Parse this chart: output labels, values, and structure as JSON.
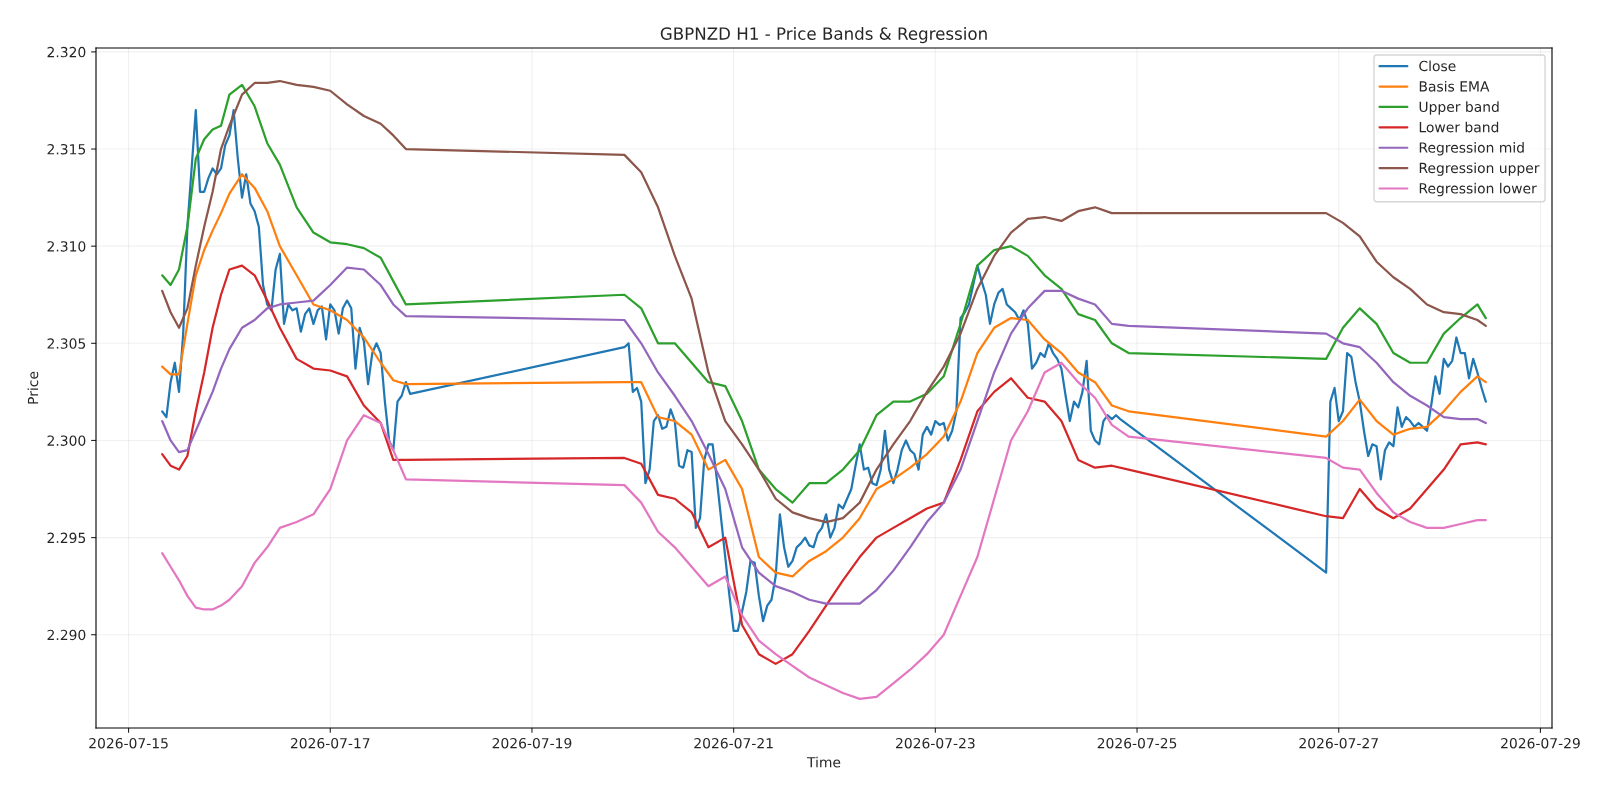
{
  "chart_data": {
    "type": "line",
    "title": "GBPNZD H1 - Price Bands & Regression",
    "xlabel": "Time",
    "ylabel": "Price",
    "x": [
      "2026-07-15T08:00",
      "2026-07-15T10:00",
      "2026-07-15T12:00",
      "2026-07-15T14:00",
      "2026-07-15T16:00",
      "2026-07-15T18:00",
      "2026-07-15T20:00",
      "2026-07-15T22:00",
      "2026-07-16T00:00",
      "2026-07-16T03:00",
      "2026-07-16T06:00",
      "2026-07-16T09:00",
      "2026-07-16T12:00",
      "2026-07-16T16:00",
      "2026-07-16T20:00",
      "2026-07-17T00:00",
      "2026-07-17T04:00",
      "2026-07-17T08:00",
      "2026-07-17T12:00",
      "2026-07-17T15:00",
      "2026-07-17T18:00",
      "2026-07-19T22:00",
      "2026-07-20T02:00",
      "2026-07-20T06:00",
      "2026-07-20T10:00",
      "2026-07-20T14:00",
      "2026-07-20T18:00",
      "2026-07-20T22:00",
      "2026-07-21T02:00",
      "2026-07-21T06:00",
      "2026-07-21T10:00",
      "2026-07-21T14:00",
      "2026-07-21T18:00",
      "2026-07-21T22:00",
      "2026-07-22T02:00",
      "2026-07-22T06:00",
      "2026-07-22T10:00",
      "2026-07-22T14:00",
      "2026-07-22T18:00",
      "2026-07-22T22:00",
      "2026-07-23T02:00",
      "2026-07-23T06:00",
      "2026-07-23T10:00",
      "2026-07-23T14:00",
      "2026-07-23T18:00",
      "2026-07-23T22:00",
      "2026-07-24T02:00",
      "2026-07-24T06:00",
      "2026-07-24T10:00",
      "2026-07-24T14:00",
      "2026-07-24T18:00",
      "2026-07-24T22:00",
      "2026-07-26T21:00",
      "2026-07-27T01:00",
      "2026-07-27T05:00",
      "2026-07-27T09:00",
      "2026-07-27T13:00",
      "2026-07-27T17:00",
      "2026-07-27T21:00",
      "2026-07-28T01:00",
      "2026-07-28T05:00",
      "2026-07-28T09:00",
      "2026-07-28T11:00"
    ],
    "series": [
      {
        "name": "Close",
        "color": "#1f77b4",
        "x": [
          "2026-07-15T08:00",
          "2026-07-15T09:00",
          "2026-07-15T10:00",
          "2026-07-15T11:00",
          "2026-07-15T12:00",
          "2026-07-15T13:00",
          "2026-07-15T14:00",
          "2026-07-15T15:00",
          "2026-07-15T16:00",
          "2026-07-15T17:00",
          "2026-07-15T18:00",
          "2026-07-15T19:00",
          "2026-07-15T20:00",
          "2026-07-15T21:00",
          "2026-07-15T22:00",
          "2026-07-15T23:00",
          "2026-07-16T00:00",
          "2026-07-16T01:00",
          "2026-07-16T02:00",
          "2026-07-16T03:00",
          "2026-07-16T04:00",
          "2026-07-16T05:00",
          "2026-07-16T06:00",
          "2026-07-16T07:00",
          "2026-07-16T08:00",
          "2026-07-16T09:00",
          "2026-07-16T10:00",
          "2026-07-16T11:00",
          "2026-07-16T12:00",
          "2026-07-16T13:00",
          "2026-07-16T14:00",
          "2026-07-16T15:00",
          "2026-07-16T16:00",
          "2026-07-16T17:00",
          "2026-07-16T18:00",
          "2026-07-16T19:00",
          "2026-07-16T20:00",
          "2026-07-16T21:00",
          "2026-07-16T22:00",
          "2026-07-16T23:00",
          "2026-07-17T00:00",
          "2026-07-17T01:00",
          "2026-07-17T02:00",
          "2026-07-17T03:00",
          "2026-07-17T04:00",
          "2026-07-17T05:00",
          "2026-07-17T06:00",
          "2026-07-17T07:00",
          "2026-07-17T08:00",
          "2026-07-17T09:00",
          "2026-07-17T10:00",
          "2026-07-17T11:00",
          "2026-07-17T12:00",
          "2026-07-17T13:00",
          "2026-07-17T14:00",
          "2026-07-17T15:00",
          "2026-07-17T16:00",
          "2026-07-17T17:00",
          "2026-07-17T18:00",
          "2026-07-17T19:00",
          "2026-07-19T22:00",
          "2026-07-19T23:00",
          "2026-07-20T00:00",
          "2026-07-20T01:00",
          "2026-07-20T02:00",
          "2026-07-20T03:00",
          "2026-07-20T04:00",
          "2026-07-20T05:00",
          "2026-07-20T06:00",
          "2026-07-20T07:00",
          "2026-07-20T08:00",
          "2026-07-20T09:00",
          "2026-07-20T10:00",
          "2026-07-20T11:00",
          "2026-07-20T12:00",
          "2026-07-20T13:00",
          "2026-07-20T14:00",
          "2026-07-20T15:00",
          "2026-07-20T16:00",
          "2026-07-20T17:00",
          "2026-07-20T18:00",
          "2026-07-20T19:00",
          "2026-07-20T20:00",
          "2026-07-20T21:00",
          "2026-07-20T22:00",
          "2026-07-20T23:00",
          "2026-07-21T00:00",
          "2026-07-21T01:00",
          "2026-07-21T02:00",
          "2026-07-21T03:00",
          "2026-07-21T04:00",
          "2026-07-21T05:00",
          "2026-07-21T06:00",
          "2026-07-21T07:00",
          "2026-07-21T08:00",
          "2026-07-21T09:00",
          "2026-07-21T10:00",
          "2026-07-21T11:00",
          "2026-07-21T12:00",
          "2026-07-21T13:00",
          "2026-07-21T14:00",
          "2026-07-21T15:00",
          "2026-07-21T16:00",
          "2026-07-21T17:00",
          "2026-07-21T18:00",
          "2026-07-21T19:00",
          "2026-07-21T20:00",
          "2026-07-21T21:00",
          "2026-07-21T22:00",
          "2026-07-21T23:00",
          "2026-07-22T00:00",
          "2026-07-22T01:00",
          "2026-07-22T02:00",
          "2026-07-22T03:00",
          "2026-07-22T04:00",
          "2026-07-22T05:00",
          "2026-07-22T06:00",
          "2026-07-22T07:00",
          "2026-07-22T08:00",
          "2026-07-22T09:00",
          "2026-07-22T10:00",
          "2026-07-22T11:00",
          "2026-07-22T12:00",
          "2026-07-22T13:00",
          "2026-07-22T14:00",
          "2026-07-22T15:00",
          "2026-07-22T16:00",
          "2026-07-22T17:00",
          "2026-07-22T18:00",
          "2026-07-22T19:00",
          "2026-07-22T20:00",
          "2026-07-22T21:00",
          "2026-07-22T22:00",
          "2026-07-22T23:00",
          "2026-07-23T00:00",
          "2026-07-23T01:00",
          "2026-07-23T02:00",
          "2026-07-23T03:00",
          "2026-07-23T04:00",
          "2026-07-23T05:00",
          "2026-07-23T06:00",
          "2026-07-23T07:00",
          "2026-07-23T08:00",
          "2026-07-23T09:00",
          "2026-07-23T10:00",
          "2026-07-23T11:00",
          "2026-07-23T12:00",
          "2026-07-23T13:00",
          "2026-07-23T14:00",
          "2026-07-23T15:00",
          "2026-07-23T16:00",
          "2026-07-23T17:00",
          "2026-07-23T18:00",
          "2026-07-23T19:00",
          "2026-07-23T20:00",
          "2026-07-23T21:00",
          "2026-07-23T22:00",
          "2026-07-23T23:00",
          "2026-07-24T00:00",
          "2026-07-24T01:00",
          "2026-07-24T02:00",
          "2026-07-24T03:00",
          "2026-07-24T04:00",
          "2026-07-24T05:00",
          "2026-07-24T06:00",
          "2026-07-24T07:00",
          "2026-07-24T08:00",
          "2026-07-24T09:00",
          "2026-07-24T10:00",
          "2026-07-24T11:00",
          "2026-07-24T12:00",
          "2026-07-24T13:00",
          "2026-07-24T14:00",
          "2026-07-24T15:00",
          "2026-07-24T16:00",
          "2026-07-24T17:00",
          "2026-07-24T18:00",
          "2026-07-24T19:00",
          "2026-07-24T20:00",
          "2026-07-26T21:00",
          "2026-07-26T22:00",
          "2026-07-26T23:00",
          "2026-07-27T00:00",
          "2026-07-27T01:00",
          "2026-07-27T02:00",
          "2026-07-27T03:00",
          "2026-07-27T04:00",
          "2026-07-27T05:00",
          "2026-07-27T06:00",
          "2026-07-27T07:00",
          "2026-07-27T08:00",
          "2026-07-27T09:00",
          "2026-07-27T10:00",
          "2026-07-27T11:00",
          "2026-07-27T12:00",
          "2026-07-27T13:00",
          "2026-07-27T14:00",
          "2026-07-27T15:00",
          "2026-07-27T16:00",
          "2026-07-27T17:00",
          "2026-07-27T18:00",
          "2026-07-27T19:00",
          "2026-07-27T20:00",
          "2026-07-27T21:00",
          "2026-07-27T22:00",
          "2026-07-27T23:00",
          "2026-07-28T00:00",
          "2026-07-28T01:00",
          "2026-07-28T02:00",
          "2026-07-28T03:00",
          "2026-07-28T04:00",
          "2026-07-28T05:00",
          "2026-07-28T06:00",
          "2026-07-28T07:00",
          "2026-07-28T08:00",
          "2026-07-28T09:00",
          "2026-07-28T10:00",
          "2026-07-28T11:00"
        ],
        "values": [
          2.3015,
          2.3012,
          2.303,
          2.304,
          2.3025,
          2.3055,
          2.311,
          2.314,
          2.317,
          2.3128,
          2.3128,
          2.3135,
          2.314,
          2.3137,
          2.314,
          2.3152,
          2.3157,
          2.317,
          2.3145,
          2.3125,
          2.3137,
          2.3122,
          2.3118,
          2.311,
          2.308,
          2.307,
          2.3067,
          2.3088,
          2.3096,
          2.306,
          2.307,
          2.3067,
          2.3068,
          2.3056,
          2.3065,
          2.3068,
          2.306,
          2.3067,
          2.3069,
          2.3052,
          2.307,
          2.3067,
          2.3055,
          2.3068,
          2.3072,
          2.3068,
          2.3037,
          2.3058,
          2.3051,
          2.3029,
          2.3045,
          2.305,
          2.3045,
          2.302,
          2.3,
          2.2995,
          2.302,
          2.3023,
          2.303,
          2.3024,
          2.3048,
          2.305,
          2.3025,
          2.3027,
          2.302,
          2.2978,
          2.2985,
          2.301,
          2.3013,
          2.3006,
          2.3007,
          2.3016,
          2.301,
          2.2987,
          2.2986,
          2.2995,
          2.2994,
          2.2955,
          2.296,
          2.299,
          2.2998,
          2.2998,
          2.298,
          2.296,
          2.294,
          2.292,
          2.2902,
          2.2902,
          2.2912,
          2.2922,
          2.2938,
          2.2937,
          2.292,
          2.2907,
          2.2915,
          2.2918,
          2.293,
          2.2962,
          2.2945,
          2.2935,
          2.2938,
          2.2945,
          2.2947,
          2.295,
          2.2946,
          2.2945,
          2.2952,
          2.2955,
          2.2962,
          2.295,
          2.2955,
          2.2967,
          2.2965,
          2.297,
          2.2975,
          2.2987,
          2.2998,
          2.2985,
          2.2986,
          2.2978,
          2.2977,
          2.2985,
          2.3005,
          2.2985,
          2.2978,
          2.2985,
          2.2995,
          2.3,
          2.2995,
          2.2993,
          2.2985,
          2.3003,
          2.3007,
          2.3003,
          2.301,
          2.3008,
          2.3009,
          2.3,
          2.3005,
          2.3015,
          2.3063,
          2.3066,
          2.307,
          2.308,
          2.309,
          2.3082,
          2.3075,
          2.306,
          2.307,
          2.3076,
          2.3078,
          2.307,
          2.3068,
          2.3066,
          2.3062,
          2.3067,
          2.306,
          2.3037,
          2.304,
          2.3045,
          2.3043,
          2.305,
          2.3045,
          2.3042,
          2.3037,
          2.3023,
          2.301,
          2.302,
          2.3017,
          2.3025,
          2.3041,
          2.3005,
          2.3,
          2.2998,
          2.301,
          2.3013,
          2.3011,
          2.3013,
          2.3011,
          2.2932,
          2.302,
          2.3027,
          2.301,
          2.3015,
          2.3045,
          2.3043,
          2.303,
          2.302,
          2.3005,
          2.2992,
          2.2998,
          2.2997,
          2.298,
          2.2995,
          2.2999,
          2.2997,
          2.3017,
          2.3007,
          2.3012,
          2.301,
          2.3007,
          2.3009,
          2.3007,
          2.3005,
          2.3018,
          2.3033,
          2.3024,
          2.3042,
          2.3038,
          2.3041,
          2.3053,
          2.3045,
          2.3045,
          2.3032,
          2.3042,
          2.3035,
          2.3027,
          2.302
        ]
      },
      {
        "name": "Basis EMA",
        "color": "#ff7f0e",
        "values": [
          2.3038,
          2.3034,
          2.3034,
          2.306,
          2.3085,
          2.3098,
          2.3108,
          2.3117,
          2.3127,
          2.3137,
          2.313,
          2.3118,
          2.31,
          2.3085,
          2.307,
          2.3067,
          2.3062,
          2.3053,
          2.304,
          2.3031,
          2.3029,
          2.303,
          2.303,
          2.3012,
          2.301,
          2.3003,
          2.2985,
          2.299,
          2.2975,
          2.294,
          2.2932,
          2.293,
          2.2938,
          2.2943,
          2.295,
          2.296,
          2.2975,
          2.298,
          2.2986,
          2.2993,
          2.3002,
          2.302,
          2.3045,
          2.3058,
          2.3063,
          2.3062,
          2.3052,
          2.3045,
          2.3035,
          2.303,
          2.3018,
          2.3015,
          2.3002,
          2.301,
          2.3021,
          2.301,
          2.3003,
          2.3006,
          2.3007,
          2.3015,
          2.3025,
          2.3033,
          2.303
        ]
      },
      {
        "name": "Upper band",
        "color": "#2ca02c",
        "values": [
          2.3085,
          2.308,
          2.3088,
          2.311,
          2.3145,
          2.3155,
          2.316,
          2.3162,
          2.3178,
          2.3183,
          2.3172,
          2.3153,
          2.3142,
          2.312,
          2.3107,
          2.3102,
          2.3101,
          2.3099,
          2.3094,
          2.3082,
          2.307,
          2.3075,
          2.3068,
          2.305,
          2.305,
          2.304,
          2.303,
          2.3028,
          2.301,
          2.2985,
          2.2975,
          2.2968,
          2.2978,
          2.2978,
          2.2985,
          2.2995,
          2.3013,
          2.302,
          2.302,
          2.3024,
          2.3033,
          2.306,
          2.309,
          2.3098,
          2.31,
          2.3095,
          2.3085,
          2.3078,
          2.3065,
          2.3062,
          2.305,
          2.3045,
          2.3042,
          2.3058,
          2.3068,
          2.306,
          2.3045,
          2.304,
          2.304,
          2.3055,
          2.3063,
          2.307,
          2.3063
        ]
      },
      {
        "name": "Lower band",
        "color": "#d62728",
        "values": [
          2.2993,
          2.2987,
          2.2985,
          2.2992,
          2.3015,
          2.3035,
          2.3058,
          2.3075,
          2.3088,
          2.309,
          2.3085,
          2.3072,
          2.3058,
          2.3042,
          2.3037,
          2.3036,
          2.3033,
          2.3018,
          2.3009,
          2.299,
          2.299,
          2.2991,
          2.2988,
          2.2972,
          2.297,
          2.2963,
          2.2945,
          2.295,
          2.2905,
          2.289,
          2.2885,
          2.289,
          2.2902,
          2.2915,
          2.2928,
          2.294,
          2.295,
          2.2955,
          2.296,
          2.2965,
          2.2968,
          2.299,
          2.3015,
          2.3025,
          2.3032,
          2.3022,
          2.302,
          2.301,
          2.299,
          2.2986,
          2.2987,
          2.2985,
          2.2961,
          2.296,
          2.2975,
          2.2965,
          2.296,
          2.2965,
          2.2975,
          2.2985,
          2.2998,
          2.2999,
          2.2998
        ]
      },
      {
        "name": "Regression mid",
        "color": "#9467bd",
        "values": [
          2.301,
          2.3,
          2.2994,
          2.2995,
          2.3005,
          2.3015,
          2.3025,
          2.3037,
          2.3047,
          2.3058,
          2.3062,
          2.3068,
          2.307,
          2.3071,
          2.3072,
          2.308,
          2.3089,
          2.3088,
          2.308,
          2.307,
          2.3064,
          2.3062,
          2.305,
          2.3035,
          2.3023,
          2.301,
          2.2993,
          2.2975,
          2.2945,
          2.2932,
          2.2925,
          2.2922,
          2.2918,
          2.2916,
          2.2916,
          2.2916,
          2.2923,
          2.2933,
          2.2945,
          2.2958,
          2.2968,
          2.2985,
          2.301,
          2.3035,
          2.3055,
          2.3068,
          2.3077,
          2.3077,
          2.3073,
          2.307,
          2.306,
          2.3059,
          2.3055,
          2.305,
          2.3048,
          2.304,
          2.303,
          2.3023,
          2.3018,
          2.3012,
          2.3011,
          2.3011,
          2.3009
        ]
      },
      {
        "name": "Regression upper",
        "color": "#8c564b",
        "values": [
          2.3077,
          2.3066,
          2.3058,
          2.3068,
          2.309,
          2.311,
          2.3128,
          2.315,
          2.3162,
          2.3178,
          2.3184,
          2.3184,
          2.3185,
          2.3183,
          2.3182,
          2.318,
          2.3173,
          2.3167,
          2.3163,
          2.3157,
          2.315,
          2.3147,
          2.3138,
          2.312,
          2.3095,
          2.3073,
          2.3035,
          2.301,
          2.2998,
          2.2985,
          2.297,
          2.2963,
          2.296,
          2.2958,
          2.296,
          2.2968,
          2.2985,
          2.2998,
          2.301,
          2.3025,
          2.3038,
          2.3055,
          2.3078,
          2.3095,
          2.3107,
          2.3114,
          2.3115,
          2.3113,
          2.3118,
          2.312,
          2.3117,
          2.3117,
          2.3117,
          2.3112,
          2.3105,
          2.3092,
          2.3084,
          2.3078,
          2.307,
          2.3066,
          2.3065,
          2.3062,
          2.3059
        ]
      },
      {
        "name": "Regression lower",
        "color": "#e377c2",
        "values": [
          2.2942,
          2.2935,
          2.2928,
          2.292,
          2.2914,
          2.2913,
          2.2913,
          2.2915,
          2.2918,
          2.2925,
          2.2937,
          2.2945,
          2.2955,
          2.2958,
          2.2962,
          2.2975,
          2.3,
          2.3013,
          2.3009,
          2.2995,
          2.298,
          2.2977,
          2.2968,
          2.2953,
          2.2945,
          2.2935,
          2.2925,
          2.293,
          2.291,
          2.2897,
          2.289,
          2.2884,
          2.2878,
          2.2874,
          2.287,
          2.2867,
          2.2868,
          2.2875,
          2.2882,
          2.289,
          2.29,
          2.292,
          2.294,
          2.297,
          2.3,
          2.3015,
          2.3035,
          2.304,
          2.303,
          2.3022,
          2.3008,
          2.3002,
          2.2991,
          2.2986,
          2.2985,
          2.2973,
          2.2963,
          2.2958,
          2.2955,
          2.2955,
          2.2957,
          2.2959,
          2.2959
        ]
      }
    ],
    "xlim": [
      "2026-07-14T16:15",
      "2026-07-29T02:45"
    ],
    "xticks": [
      "2026-07-15",
      "2026-07-17",
      "2026-07-19",
      "2026-07-21",
      "2026-07-23",
      "2026-07-25",
      "2026-07-27",
      "2026-07-29"
    ],
    "ylim": [
      2.2852,
      2.3202
    ],
    "yticks": [
      {
        "value": 2.29,
        "label": "2.290"
      },
      {
        "value": 2.295,
        "label": "2.295"
      },
      {
        "value": 2.3,
        "label": "2.300"
      },
      {
        "value": 2.305,
        "label": "2.305"
      },
      {
        "value": 2.31,
        "label": "2.310"
      },
      {
        "value": 2.315,
        "label": "2.315"
      },
      {
        "value": 2.32,
        "label": "2.320"
      }
    ],
    "grid": true,
    "legend": "top right"
  }
}
